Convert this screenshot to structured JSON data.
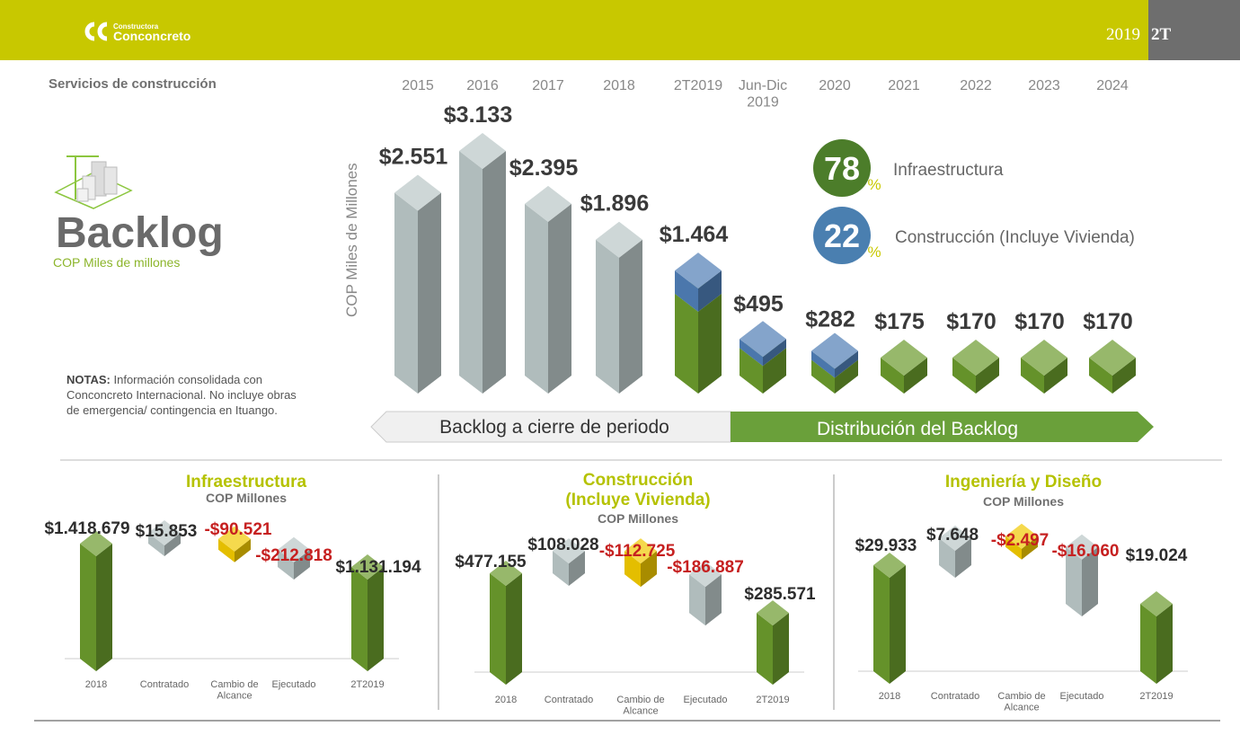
{
  "header": {
    "logo_small": "Constructora",
    "logo_big": "Conconcreto",
    "period_year": "2019",
    "period_quarter": "2T"
  },
  "section_title": "Servicios de construcción",
  "backlog_title": "Backlog",
  "backlog_subtitle": "COP Miles de millones",
  "notes": {
    "label": "NOTAS:",
    "text": " Información consolidada con Conconcreto Internacional. No incluye obras de emergencia/ contingencia en Ituango."
  },
  "colors": {
    "header": "#c8c800",
    "green": "#6a9a2c",
    "blue": "#4f7db5",
    "gray": "#b9c6c6",
    "yellow": "#f0c800",
    "negative": "#c62020"
  },
  "chart_data": [
    {
      "type": "bar",
      "ylabel": "COP Miles de Millones",
      "categories": [
        "2015",
        "2016",
        "2017",
        "2018",
        "2T2019",
        "Jun-Dic\n2019",
        "2020",
        "2021",
        "2022",
        "2023",
        "2024"
      ],
      "values": [
        2551,
        3133,
        2395,
        1896,
        1464,
        495,
        282,
        175,
        170,
        170,
        170
      ],
      "labels": [
        "$2.551",
        "$3.133",
        "$2.395",
        "$1.896",
        "$1.464",
        "$495",
        "$282",
        "$175",
        "$170",
        "$170",
        "$170"
      ],
      "split_green_share": [
        null,
        null,
        null,
        null,
        0.78,
        0.78,
        0.78,
        1,
        1,
        1,
        1
      ],
      "distribution": [
        {
          "pct": "78",
          "sign": "%",
          "label": "Infraestructura",
          "color": "#4c7d2a"
        },
        {
          "pct": "22",
          "sign": "%",
          "label": "Construcción (Incluye Vivienda)",
          "color": "#4a7fb0"
        }
      ],
      "bands": [
        "Backlog a cierre de periodo",
        "Distribución del Backlog"
      ]
    },
    {
      "type": "bar",
      "title": "Infraestructura",
      "subtitle": "COP Millones",
      "categories": [
        "2018",
        "Contratado",
        "Cambio de\nAlcance",
        "Ejecutado",
        "2T2019"
      ],
      "values": [
        1418679,
        15853,
        -90521,
        -212818,
        1131194
      ],
      "labels": [
        "$1.418.679",
        "$15.853",
        "-$90.521",
        "-$212.818",
        "$1.131.194"
      ]
    },
    {
      "type": "bar",
      "title": "Construcción\n(Incluye Vivienda)",
      "subtitle": "COP Millones",
      "categories": [
        "2018",
        "Contratado",
        "Cambio de\nAlcance",
        "Ejecutado",
        "2T2019"
      ],
      "values": [
        477155,
        108028,
        -112725,
        -186887,
        285571
      ],
      "labels": [
        "$477.155",
        "$108.028",
        "-$112.725",
        "-$186.887",
        "$285.571"
      ]
    },
    {
      "type": "bar",
      "title": "Ingeniería y Diseño",
      "subtitle": "COP Millones",
      "categories": [
        "2018",
        "Contratado",
        "Cambio de\nAlcance",
        "Ejecutado",
        "2T2019"
      ],
      "values": [
        29933,
        7648,
        -2497,
        -16060,
        19024
      ],
      "labels": [
        "$29.933",
        "$7.648",
        "-$2.497",
        "-$16.060",
        "$19.024"
      ]
    }
  ]
}
